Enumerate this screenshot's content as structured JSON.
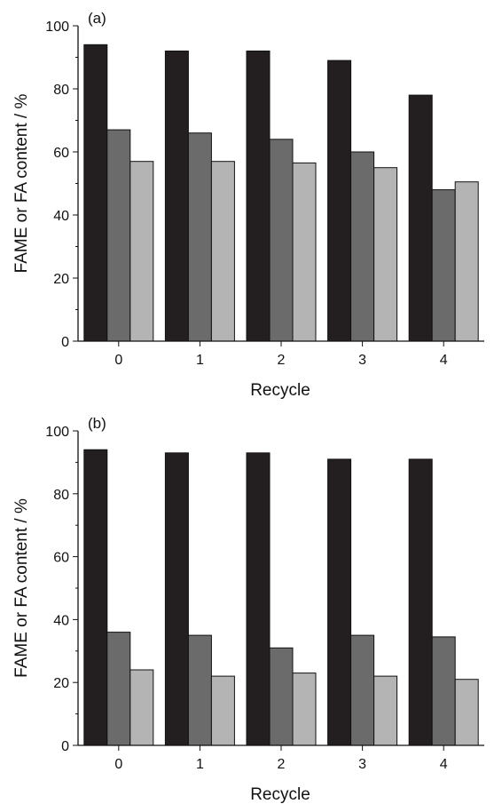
{
  "chart_data": [
    {
      "type": "bar",
      "panel_label": "(a)",
      "xlabel": "Recycle",
      "ylabel": "FAME or FA content / %",
      "categories": [
        "0",
        "1",
        "2",
        "3",
        "4"
      ],
      "ylim": [
        0,
        100
      ],
      "yticks": [
        0,
        20,
        40,
        60,
        80,
        100
      ],
      "grid": false,
      "series": [
        {
          "color": "#231f20",
          "values": [
            94,
            92,
            92,
            89,
            78
          ]
        },
        {
          "color": "#6b6b6b",
          "values": [
            67,
            66,
            64,
            60,
            48
          ]
        },
        {
          "color": "#b4b4b4",
          "values": [
            57,
            57,
            56.5,
            55,
            50.5
          ]
        }
      ]
    },
    {
      "type": "bar",
      "panel_label": "(b)",
      "xlabel": "Recycle",
      "ylabel": "FAME or FA content / %",
      "categories": [
        "0",
        "1",
        "2",
        "3",
        "4"
      ],
      "ylim": [
        0,
        100
      ],
      "yticks": [
        0,
        20,
        40,
        60,
        80,
        100
      ],
      "grid": false,
      "series": [
        {
          "color": "#231f20",
          "values": [
            94,
            93,
            93,
            91,
            91
          ]
        },
        {
          "color": "#6b6b6b",
          "values": [
            36,
            35,
            31,
            35,
            34.5
          ]
        },
        {
          "color": "#b4b4b4",
          "values": [
            24,
            22,
            23,
            22,
            21
          ]
        }
      ]
    }
  ]
}
